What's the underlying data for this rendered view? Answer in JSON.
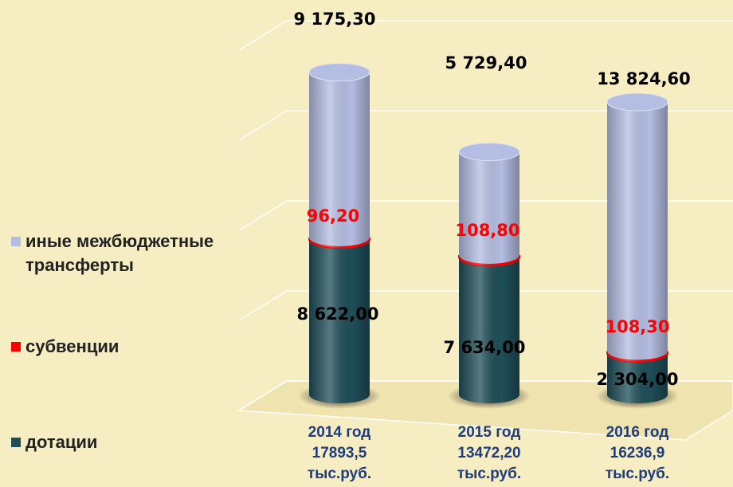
{
  "chart_data": {
    "type": "bar",
    "stacked": true,
    "categories": [
      "2014 год\n17893,5\nтыс.руб.",
      "2015 год\n13472,20\nтыс.руб.",
      "2016 год\n16236,9\nтыс.руб."
    ],
    "series": [
      {
        "name": "дотации",
        "color": "#1f4e58",
        "label_color": "#000000",
        "values": [
          8622,
          7634,
          2304
        ],
        "value_labels": [
          "8 622,00",
          "7 634,00",
          "2 304,00"
        ]
      },
      {
        "name": "субвенции",
        "color": "#ff0000",
        "label_color": "#ff0000",
        "values": [
          96.2,
          108.8,
          108.3
        ],
        "value_labels": [
          "96,20",
          "108,80",
          "108,30"
        ]
      },
      {
        "name": "иные межбюджетные трансферты",
        "color": "#b4bde2",
        "label_color": "#000000",
        "values": [
          9175.3,
          5729.4,
          13824.6
        ],
        "value_labels": [
          "9 175,30",
          "5 729,40",
          "13 824,60"
        ]
      }
    ],
    "ylim": [
      0,
      20000
    ],
    "yticks": [
      0,
      5000,
      10000,
      15000,
      20000
    ],
    "grid": true,
    "legend": "left"
  }
}
